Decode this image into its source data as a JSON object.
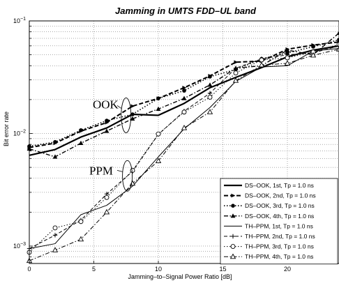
{
  "chart_data": {
    "type": "line",
    "title": "Jamming in UMTS FDD–UL band",
    "xlabel": "Jamming–to–Signal Power Ratio [dB]",
    "ylabel": "Bit error rate",
    "xlim": [
      0,
      24
    ],
    "ylim": [
      0.0007,
      0.1
    ],
    "yscale": "log",
    "grid": true,
    "legend_position": "bottom-right",
    "x_ticks": [
      "0",
      "5",
      "10",
      "15",
      "20"
    ],
    "y_ticks": [
      {
        "base": "10",
        "exp": "−1"
      },
      {
        "base": "10",
        "exp": "−2"
      },
      {
        "base": "10",
        "exp": "−3"
      }
    ],
    "annotations": [
      "OOK",
      "PPM"
    ],
    "series": [
      {
        "name": "DS–OOK, 1st, Tp = 1.0 ns",
        "style": "solid-thick",
        "marker": "none",
        "x": [
          0,
          2,
          4,
          6,
          8,
          10,
          12,
          14,
          16,
          18,
          20,
          22,
          24
        ],
        "y": [
          0.0064,
          0.0072,
          0.0093,
          0.0112,
          0.0148,
          0.0145,
          0.0185,
          0.0255,
          0.0315,
          0.0385,
          0.048,
          0.055,
          0.06
        ]
      },
      {
        "name": "DS–OOK, 2nd, Tp = 1.0 ns",
        "style": "dashed-thick",
        "marker": "arrow",
        "x": [
          0,
          2,
          4,
          6,
          8,
          10,
          12,
          14,
          16,
          18,
          20,
          22,
          24
        ],
        "y": [
          0.0075,
          0.0082,
          0.0105,
          0.0125,
          0.0175,
          0.0205,
          0.0255,
          0.0325,
          0.043,
          0.044,
          0.056,
          0.061,
          0.065
        ]
      },
      {
        "name": "DS–OOK, 3rd, Tp = 1.0 ns",
        "style": "dotted",
        "marker": "circle-filled",
        "x": [
          0,
          2,
          4,
          6,
          8,
          10,
          12,
          14,
          16,
          18,
          20,
          22,
          24
        ],
        "y": [
          0.0077,
          0.0084,
          0.0107,
          0.013,
          0.0148,
          0.0205,
          0.024,
          0.032,
          0.037,
          0.046,
          0.052,
          0.059,
          0.068
        ]
      },
      {
        "name": "DS–OOK, 4th, Tp = 1.0 ns",
        "style": "dashdot",
        "marker": "triangle-filled",
        "x": [
          0,
          2,
          4,
          6,
          8,
          10,
          12,
          14,
          16,
          18,
          20,
          22,
          24
        ],
        "y": [
          0.0073,
          0.0062,
          0.0082,
          0.0105,
          0.0135,
          0.0165,
          0.0205,
          0.027,
          0.038,
          0.04,
          0.055,
          0.05,
          0.078
        ]
      },
      {
        "name": "TH–PPM, 1st, Tp = 1.0 ns",
        "style": "solid-thin",
        "marker": "none",
        "x": [
          0,
          2,
          4,
          6,
          8,
          10,
          12,
          14,
          16,
          18,
          20,
          22,
          24
        ],
        "y": [
          0.00095,
          0.00105,
          0.0019,
          0.0023,
          0.0034,
          0.0062,
          0.011,
          0.017,
          0.029,
          0.039,
          0.04,
          0.054,
          0.057
        ]
      },
      {
        "name": "TH–PPM, 2nd, Tp = 1.0 ns",
        "style": "dashed-thin",
        "marker": "plus",
        "x": [
          0,
          2,
          4,
          6,
          8,
          10,
          12,
          14,
          16,
          18,
          20,
          22,
          24
        ],
        "y": [
          0.00095,
          0.00125,
          0.0017,
          0.0029,
          0.0046,
          0.0098,
          0.0158,
          0.0228,
          0.038,
          0.046,
          0.05,
          0.052,
          0.06
        ]
      },
      {
        "name": "TH–PPM, 3rd, Tp = 1.0 ns",
        "style": "dotted-thin",
        "marker": "circle-open",
        "x": [
          0,
          2,
          4,
          6,
          8,
          10,
          12,
          14,
          16,
          18,
          20,
          22,
          24
        ],
        "y": [
          0.00088,
          0.00145,
          0.00165,
          0.0027,
          0.0047,
          0.0099,
          0.0155,
          0.021,
          0.0345,
          0.045,
          0.047,
          0.053,
          0.062
        ]
      },
      {
        "name": "TH–PPM, 4th, Tp = 1.0 ns",
        "style": "dashdot-thin",
        "marker": "triangle-open",
        "x": [
          0,
          2,
          4,
          6,
          8,
          10,
          12,
          14,
          16,
          18,
          20,
          22,
          24
        ],
        "y": [
          0.00074,
          0.00092,
          0.00115,
          0.002,
          0.0036,
          0.0057,
          0.0112,
          0.0155,
          0.0295,
          0.0405,
          0.042,
          0.0495,
          0.056
        ]
      }
    ]
  }
}
